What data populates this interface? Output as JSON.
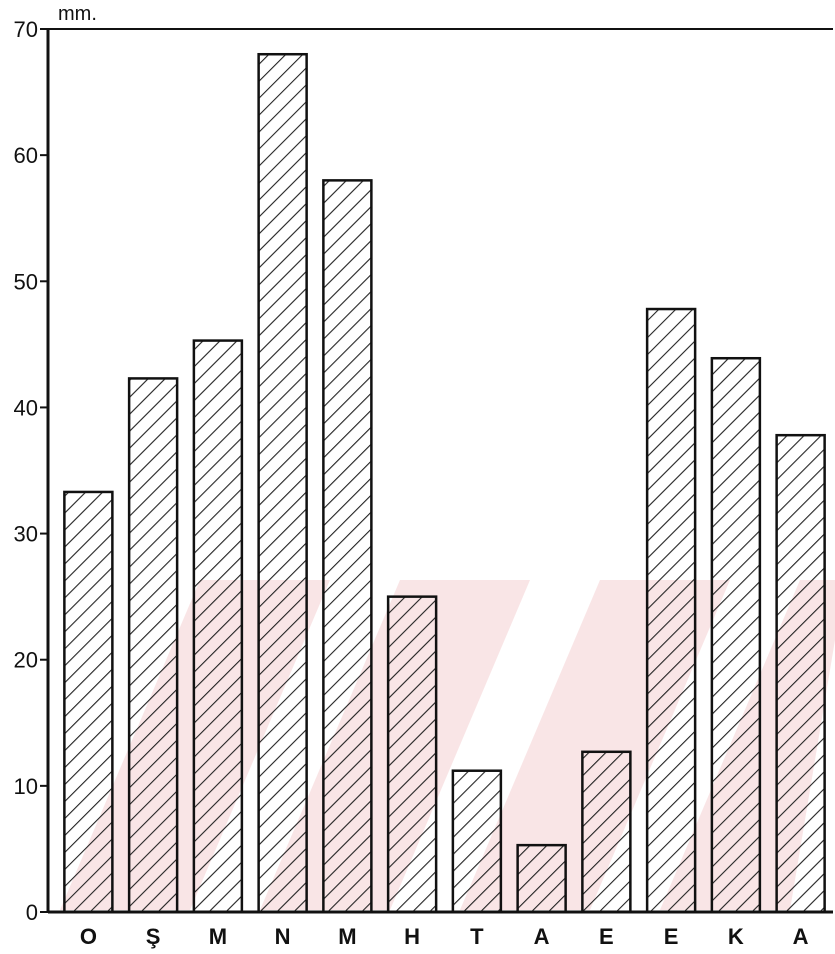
{
  "chart_data": {
    "type": "bar",
    "unit": "mm.",
    "categories": [
      "O",
      "Ş",
      "M",
      "N",
      "M",
      "H",
      "T",
      "A",
      "E",
      "E",
      "K",
      "A"
    ],
    "values": [
      33.3,
      42.3,
      45.3,
      68.0,
      58.0,
      25.0,
      11.2,
      5.3,
      12.7,
      47.8,
      43.9,
      37.8
    ],
    "ylim": [
      0,
      70
    ],
    "yticks": [
      0,
      10,
      20,
      30,
      40,
      50,
      60,
      70
    ],
    "xlabel": "",
    "ylabel": "",
    "title": "",
    "grid": false,
    "bar_fill": "diagonal-hatch",
    "colors": {
      "bar_stroke": "#111111",
      "hatch": "#222222",
      "axis": "#111111",
      "watermark": "#f2c9cc"
    }
  }
}
